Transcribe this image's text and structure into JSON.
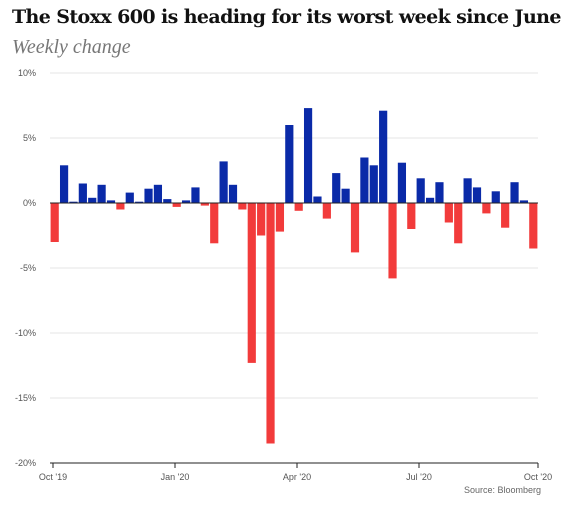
{
  "title": "The Stoxx 600 is heading for its worst week since June",
  "subtitle": "Weekly change",
  "source": "Source: Bloomberg",
  "colors": {
    "positive": "#0a2aa8",
    "negative": "#f23b3b",
    "grid": "#e4e4e4",
    "axis": "#222222",
    "label": "#555555"
  },
  "chart_data": {
    "type": "bar",
    "title": "The Stoxx 600 is heading for its worst week since June",
    "subtitle": "Weekly change",
    "xlabel": "",
    "ylabel": "",
    "ylim": [
      -20,
      10
    ],
    "yticks": [
      10,
      5,
      0,
      -5,
      -10,
      -15,
      -20
    ],
    "ytick_labels": [
      "10%",
      "5%",
      "0%",
      "-5%",
      "-10%",
      "-15%",
      "-20%"
    ],
    "xtick_labels": [
      "Oct '19",
      "Jan '20",
      "Apr '20",
      "Jul '20",
      "Oct '20"
    ],
    "xtick_weeks": [
      0,
      13,
      26,
      39,
      52
    ],
    "grid": true,
    "legend": "none",
    "x_start": "2019-10-04",
    "x_step": "1 week",
    "values": [
      -3.0,
      2.9,
      0.1,
      1.5,
      0.4,
      1.4,
      0.2,
      -0.5,
      0.8,
      0.1,
      1.1,
      1.4,
      0.3,
      -0.3,
      0.2,
      1.2,
      -0.2,
      -3.1,
      3.2,
      1.4,
      -0.5,
      -12.3,
      -2.5,
      -18.5,
      -2.2,
      6.0,
      -0.6,
      7.3,
      0.5,
      -1.2,
      2.3,
      1.1,
      -3.8,
      3.5,
      2.9,
      7.1,
      -5.8,
      3.1,
      -2.0,
      1.9,
      0.4,
      1.6,
      -1.5,
      -3.1,
      1.9,
      1.2,
      -0.8,
      0.9,
      -1.9,
      1.6,
      0.2,
      -3.5
    ]
  }
}
